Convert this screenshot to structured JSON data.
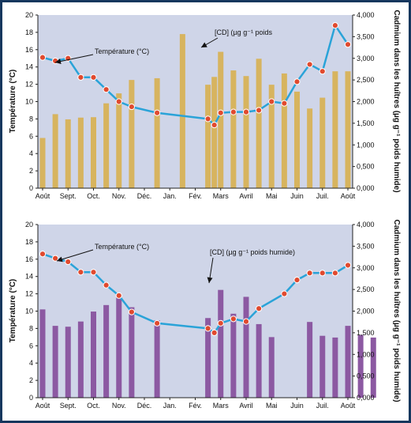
{
  "chart_data": [
    {
      "type": "bar",
      "x_months": [
        "Août",
        "Sept.",
        "Oct.",
        "Nov.",
        "Déc.",
        "Jan.",
        "Fév.",
        "Mars",
        "Avril",
        "Mai",
        "Juin",
        "Juil.",
        "Août"
      ],
      "ylabel": "Température (°C)",
      "y2label": "Cadmium dans les huîtres (µg g⁻¹ poids humide)",
      "ylim": [
        0,
        20
      ],
      "y_ticks": [
        "0",
        "2",
        "4",
        "6",
        "8",
        "10",
        "12",
        "14",
        "16",
        "18",
        "20"
      ],
      "y2lim": [
        0,
        4
      ],
      "y2_ticks": [
        "0,000",
        "0,500",
        "1,000",
        "1,500",
        "2,000",
        "2,500",
        "3,000",
        "3,500",
        "4,000"
      ],
      "grid": false,
      "colors": {
        "plot_bg": "#cfd5e8",
        "bar": "#d7b45f",
        "line": "#2aa3d8",
        "marker": "#e04a2f"
      },
      "annotations": {
        "temperature": "Température (°C)",
        "cadmium": "[CD] (µg g⁻¹ poids"
      },
      "cadmium_series": {
        "x": [
          0.0,
          0.5,
          1.0,
          1.5,
          2.0,
          2.5,
          3.0,
          3.5,
          4.5,
          5.5,
          6.5,
          6.75,
          7.0,
          7.5,
          8.0,
          8.5,
          9.0,
          9.5,
          10.0,
          10.5,
          11.0,
          11.5,
          12.0
        ],
        "values": [
          1.16,
          1.71,
          1.59,
          1.63,
          1.64,
          1.96,
          2.19,
          2.5,
          2.54,
          3.56,
          2.39,
          2.57,
          3.15,
          2.72,
          2.59,
          2.99,
          2.39,
          2.65,
          2.23,
          1.84,
          2.09,
          2.7,
          2.7
        ]
      },
      "temperature_series": {
        "x": [
          0.0,
          0.5,
          1.0,
          1.5,
          2.0,
          2.5,
          3.0,
          3.5,
          4.5,
          6.5,
          6.75,
          7.0,
          7.5,
          8.0,
          8.5,
          9.0,
          9.5,
          10.0,
          10.5,
          11.0,
          11.5,
          12.0
        ],
        "values": [
          15.1,
          14.7,
          15.0,
          12.8,
          12.8,
          11.4,
          10.0,
          9.4,
          8.7,
          8.0,
          7.3,
          8.7,
          8.8,
          8.8,
          9.0,
          10.0,
          9.8,
          12.3,
          14.3,
          13.5,
          18.8,
          16.6
        ]
      }
    },
    {
      "type": "bar",
      "x_months": [
        "Août",
        "Sept.",
        "Oct.",
        "Nov.",
        "Déc.",
        "Jan.",
        "Fév.",
        "Mars",
        "Avril",
        "Mai",
        "Juin",
        "Juil.",
        "Août"
      ],
      "ylabel": "Température (°C)",
      "y2label": "Cadmium dans les huîtres (µg g⁻¹ poids humide)",
      "ylim": [
        0,
        20
      ],
      "y_ticks": [
        "0",
        "2",
        "4",
        "6",
        "8",
        "10",
        "12",
        "14",
        "16",
        "18",
        "20"
      ],
      "y2lim": [
        0,
        4
      ],
      "y2_ticks": [
        "0,000",
        "0,500",
        "1,000",
        "1,500",
        "2,000",
        "2,500",
        "3,000",
        "3,500",
        "4,000"
      ],
      "grid": false,
      "colors": {
        "plot_bg": "#cfd5e8",
        "bar": "#8c59a2",
        "line": "#2aa3d8",
        "marker": "#e04a2f"
      },
      "annotations": {
        "temperature": "Température (°C)",
        "cadmium": "[CD] (µg g⁻¹ poids humide)"
      },
      "cadmium_series": {
        "x": [
          0.0,
          0.5,
          1.0,
          1.5,
          2.0,
          2.5,
          3.0,
          3.5,
          4.5,
          6.5,
          7.0,
          7.5,
          8.0,
          8.5,
          9.0,
          10.5,
          11.0,
          11.5,
          12.0,
          12.5,
          13.0
        ],
        "values": [
          2.04,
          1.66,
          1.64,
          1.76,
          1.99,
          2.14,
          2.37,
          2.09,
          1.79,
          1.84,
          2.49,
          1.94,
          2.33,
          1.7,
          1.4,
          1.75,
          1.43,
          1.39,
          1.66,
          1.45,
          1.39
        ]
      },
      "temperature_series": {
        "x": [
          0.0,
          0.5,
          1.0,
          1.5,
          2.0,
          2.5,
          3.0,
          3.5,
          4.5,
          6.5,
          6.75,
          7.0,
          7.5,
          8.0,
          8.5,
          9.5,
          10.0,
          10.5,
          11.0,
          11.5,
          12.0
        ],
        "values": [
          16.6,
          16.1,
          15.7,
          14.5,
          14.5,
          13.0,
          11.8,
          9.9,
          8.6,
          8.0,
          7.5,
          8.6,
          9.1,
          8.8,
          10.3,
          12.0,
          13.6,
          14.4,
          14.4,
          14.4,
          15.3
        ]
      }
    }
  ]
}
